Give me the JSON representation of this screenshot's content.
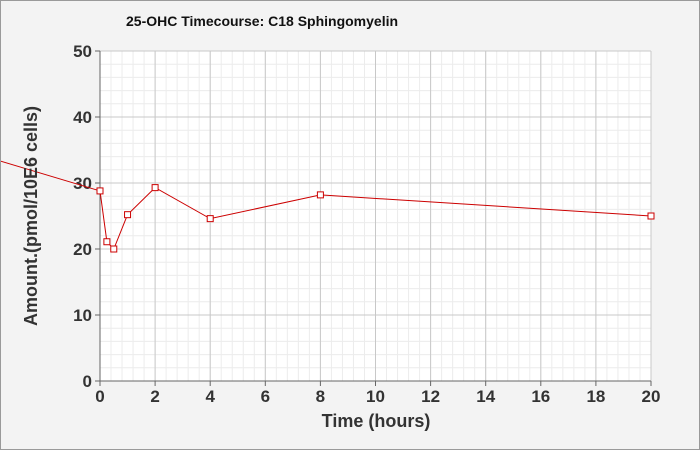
{
  "chart_data": {
    "type": "line",
    "title": "25-OHC Timecourse: C18 Sphingomyelin",
    "xlabel": "Time (hours)",
    "ylabel": "Amount.(pmol/10E6 cells)",
    "xlim": [
      0,
      20
    ],
    "ylim": [
      0,
      50
    ],
    "x_ticks": [
      "0",
      "2",
      "4",
      "6",
      "8",
      "10",
      "12",
      "14",
      "16",
      "18",
      "20"
    ],
    "y_ticks": [
      "0",
      "10",
      "20",
      "30",
      "40",
      "50"
    ],
    "grid": true,
    "minor_grid": true,
    "series": [
      {
        "color": "#cc0000",
        "marker": "square",
        "x": [
          0,
          0.25,
          0.5,
          1,
          2,
          4,
          8,
          20
        ],
        "y": [
          28.8,
          21.1,
          20.0,
          25.2,
          29.3,
          24.6,
          28.2,
          25.0
        ]
      }
    ],
    "leading_segment": {
      "x": [
        -3.6,
        0
      ],
      "y": [
        33.3,
        28.8
      ]
    }
  }
}
